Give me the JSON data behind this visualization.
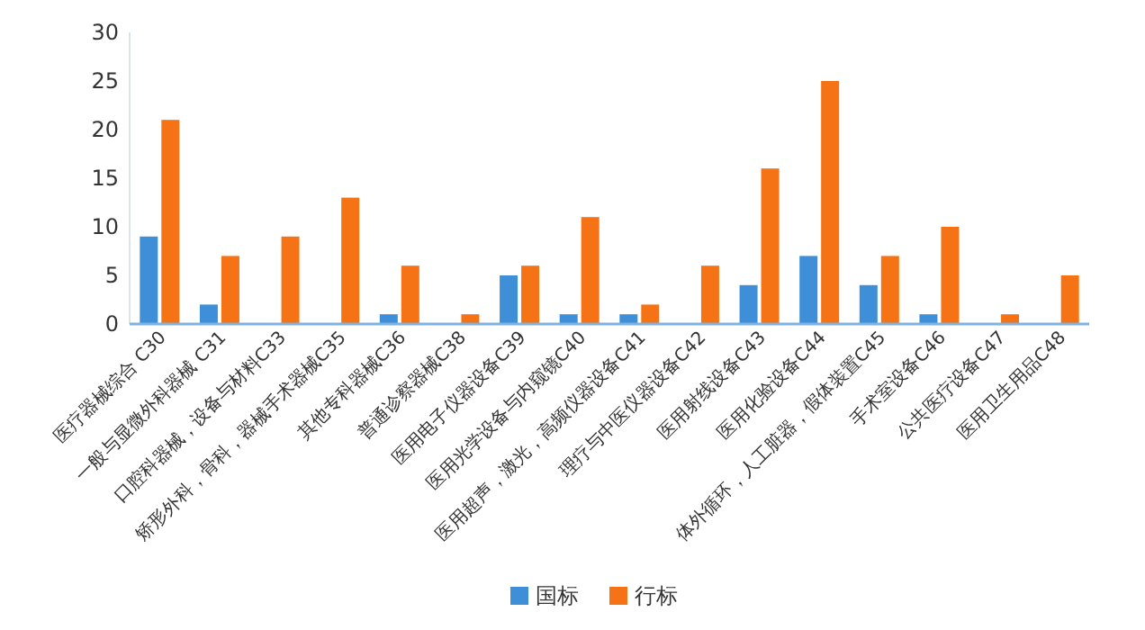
{
  "chart_data": {
    "type": "bar",
    "categories": [
      "医疗器械综合 C30",
      "一般与显微外科器械 C31",
      "口腔科器械，设备与材料C33",
      "矫形外科，骨科，器械手术器械C35",
      "其他专科器械C36",
      "普通诊察器械C38",
      "医用电子仪器设备C39",
      "医用光学设备与内窥镜C40",
      "医用超声，激光，高频仪器设备C41",
      "理疗与中医仪器设备C42",
      "医用射线设备C43",
      "医用化验设备C44",
      "体外循环，人工脏器，假体装置C45",
      "手术室设备C46",
      "公共医疗设备C47",
      "医用卫生用品C48"
    ],
    "series": [
      {
        "name": "国标",
        "color": "#3f8fd8",
        "values": [
          9,
          2,
          0,
          0,
          1,
          0,
          5,
          1,
          1,
          0,
          4,
          7,
          4,
          1,
          0,
          0
        ]
      },
      {
        "name": "行标",
        "color": "#f57314",
        "values": [
          21,
          7,
          9,
          13,
          6,
          1,
          6,
          11,
          2,
          6,
          16,
          25,
          7,
          10,
          1,
          5
        ]
      }
    ],
    "ylim": [
      0,
      30
    ],
    "yticks": [
      0,
      5,
      10,
      15,
      20,
      25,
      30
    ],
    "legend": "bottom",
    "grid": false
  }
}
